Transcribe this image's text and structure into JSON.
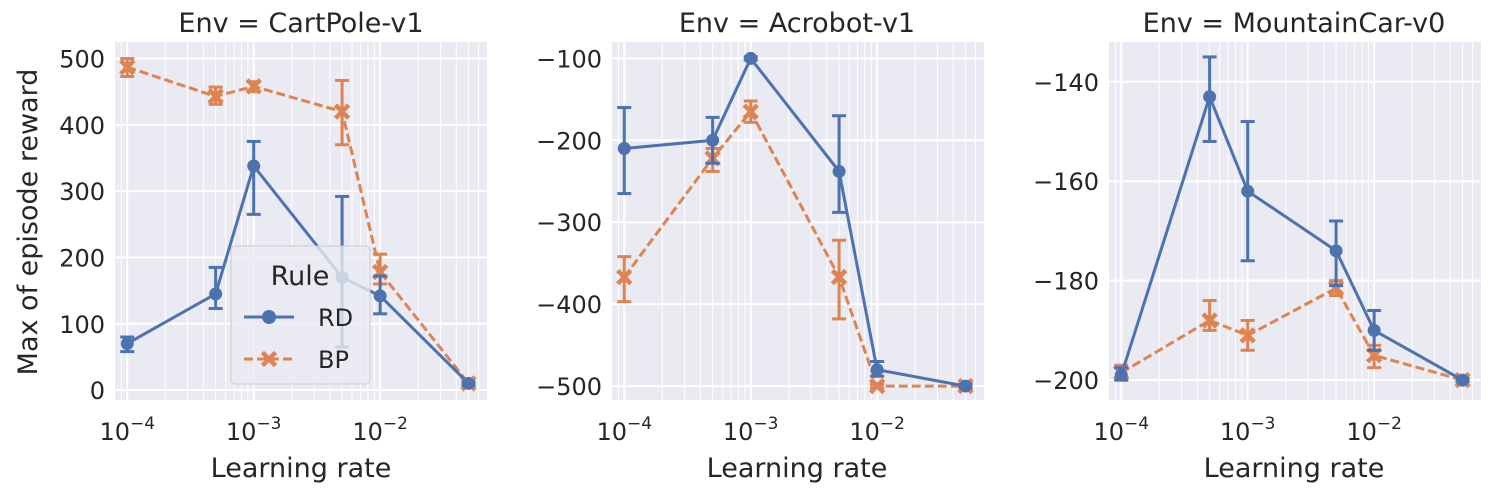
{
  "ylabel": "Max of episode reward",
  "xlabel": "Learning rate",
  "legend": {
    "title": "Rule",
    "placement": "lower-left-center",
    "entries": [
      {
        "name": "RD",
        "color": "#4c72b0",
        "marker": "circle",
        "line": "solid"
      },
      {
        "name": "BP",
        "color": "#dd8452",
        "marker": "x",
        "line": "dashed"
      }
    ]
  },
  "style": {
    "background": "#eaeaf2",
    "grid": "#ffffff",
    "text": "#262626"
  },
  "chart_data": [
    {
      "type": "line",
      "title": "Env = CartPole-v1",
      "xscale": "log",
      "xlim": [
        8e-05,
        0.07
      ],
      "ylim": [
        -15,
        525
      ],
      "yticks": [
        0,
        100,
        200,
        300,
        400,
        500
      ],
      "ytick_labels": [
        "0",
        "100",
        "200",
        "300",
        "400",
        "500"
      ],
      "show_legend": true,
      "x": [
        0.0001,
        0.0005,
        0.001,
        0.005,
        0.01,
        0.05
      ],
      "series": [
        {
          "name": "RD",
          "values": [
            70,
            145,
            338,
            170,
            142,
            10
          ],
          "err_low": [
            58,
            123,
            265,
            65,
            115,
            7
          ],
          "err_high": [
            80,
            185,
            375,
            292,
            172,
            12
          ]
        },
        {
          "name": "BP",
          "values": [
            487,
            443,
            458,
            420,
            178,
            10
          ],
          "err_low": [
            473,
            431,
            450,
            370,
            160,
            8
          ],
          "err_high": [
            500,
            457,
            465,
            467,
            205,
            12
          ]
        }
      ]
    },
    {
      "type": "line",
      "title": "Env = Acrobot-v1",
      "xscale": "log",
      "xlim": [
        8e-05,
        0.07
      ],
      "ylim": [
        -517,
        -80
      ],
      "yticks": [
        -500,
        -400,
        -300,
        -200,
        -100
      ],
      "ytick_labels": [
        "−500",
        "−400",
        "−300",
        "−200",
        "−100"
      ],
      "show_legend": false,
      "x": [
        0.0001,
        0.0005,
        0.001,
        0.005,
        0.01,
        0.05
      ],
      "series": [
        {
          "name": "RD",
          "values": [
            -210,
            -200,
            -100,
            -238,
            -480,
            -500
          ],
          "err_low": [
            -265,
            -228,
            -102,
            -288,
            -488,
            -502
          ],
          "err_high": [
            -160,
            -172,
            -98,
            -170,
            -470,
            -498
          ]
        },
        {
          "name": "BP",
          "values": [
            -367,
            -222,
            -165,
            -367,
            -500,
            -500
          ],
          "err_low": [
            -397,
            -238,
            -178,
            -418,
            -502,
            -502
          ],
          "err_high": [
            -342,
            -210,
            -152,
            -322,
            -498,
            -498
          ]
        }
      ]
    },
    {
      "type": "line",
      "title": "Env = MountainCar-v0",
      "xscale": "log",
      "xlim": [
        8e-05,
        0.07
      ],
      "ylim": [
        -204,
        -132
      ],
      "yticks": [
        -200,
        -180,
        -160,
        -140
      ],
      "ytick_labels": [
        "−200",
        "−180",
        "−160",
        "−140"
      ],
      "show_legend": false,
      "x": [
        0.0001,
        0.0005,
        0.001,
        0.005,
        0.01,
        0.05
      ],
      "series": [
        {
          "name": "RD",
          "values": [
            -199,
            -143,
            -162,
            -174,
            -190,
            -200
          ],
          "err_low": [
            -200,
            -152,
            -176,
            -181,
            -194,
            -200.3
          ],
          "err_high": [
            -197.5,
            -135,
            -148,
            -168,
            -186,
            -199.7
          ]
        },
        {
          "name": "BP",
          "values": [
            -198.5,
            -188,
            -191,
            -181.5,
            -195,
            -200
          ],
          "err_low": [
            -200,
            -190,
            -194,
            -183,
            -197.5,
            -200.3
          ],
          "err_high": [
            -197,
            -184,
            -188,
            -180,
            -193,
            -199.7
          ]
        }
      ]
    }
  ]
}
